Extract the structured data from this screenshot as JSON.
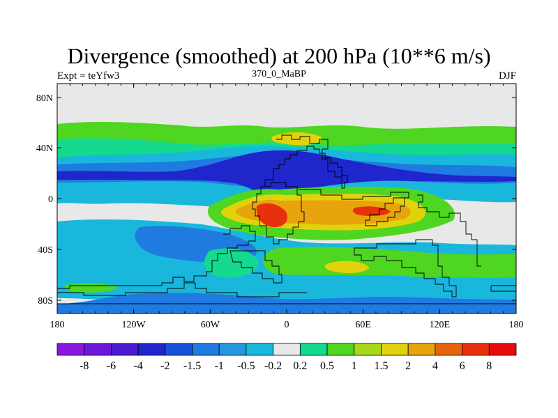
{
  "title": "Divergence (smoothed) at 200 hPa (10**6 m/s)",
  "subtitle_left": "Expt = teYfw3",
  "subtitle_center": "370_0_MaBP",
  "subtitle_right": "DJF",
  "y_ticks": [
    "80N",
    "40N",
    "0",
    "40S",
    "80S"
  ],
  "x_ticks": [
    "180",
    "120W",
    "60W",
    "0",
    "60E",
    "120E",
    "180"
  ],
  "colorbar": {
    "labels": [
      "-8",
      "-6",
      "-4",
      "-2",
      "-1.5",
      "-1",
      "-0.5",
      "-0.2",
      "0.2",
      "0.5",
      "1",
      "1.5",
      "2",
      "4",
      "6",
      "8"
    ],
    "colors": [
      "#8a16e0",
      "#6a17d8",
      "#4a1bd0",
      "#1f26cc",
      "#1652d8",
      "#1f7be0",
      "#2198e0",
      "#19b7dc",
      "#e8e8e8",
      "#14d98e",
      "#4ed620",
      "#a8d81c",
      "#e2d20e",
      "#e8a40c",
      "#e8640c",
      "#e8300c",
      "#e80c0c"
    ]
  },
  "map_colors": {
    "ocean_bg": "#e8e8e8",
    "dark_blue": "#1f26cc",
    "blue": "#1f7be0",
    "cyan": "#19b7dc",
    "teal": "#14d98e",
    "green": "#4ed620",
    "yellow_green": "#a8d81c",
    "yellow": "#e2d20e",
    "orange": "#e8a40c",
    "red": "#e8300c"
  }
}
